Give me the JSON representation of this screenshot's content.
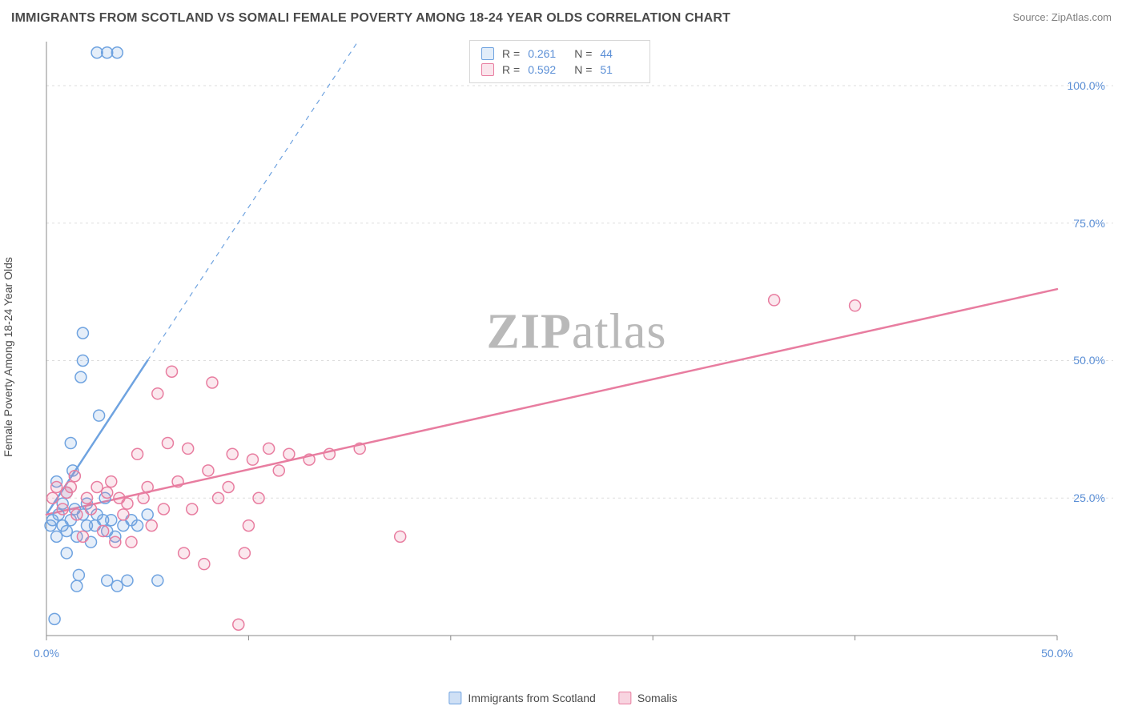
{
  "title": "IMMIGRANTS FROM SCOTLAND VS SOMALI FEMALE POVERTY AMONG 18-24 YEAR OLDS CORRELATION CHART",
  "source_label": "Source: ZipAtlas.com",
  "watermark": {
    "bold": "ZIP",
    "rest": "atlas"
  },
  "y_axis_label": "Female Poverty Among 18-24 Year Olds",
  "chart": {
    "type": "scatter",
    "background_color": "#ffffff",
    "grid_color": "#dddddd",
    "grid_dash": "3,4",
    "axis_line_color": "#888888",
    "xlim": [
      0,
      50
    ],
    "ylim": [
      0,
      108
    ],
    "x_ticks": [
      0,
      10,
      20,
      30,
      40,
      50
    ],
    "x_tick_labels": [
      "0.0%",
      "",
      "",
      "",
      "",
      "50.0%"
    ],
    "y_ticks": [
      25,
      50,
      75,
      100
    ],
    "y_tick_labels": [
      "25.0%",
      "50.0%",
      "75.0%",
      "100.0%"
    ],
    "axis_label_color": "#5b8fd6",
    "marker_radius": 7,
    "marker_stroke_width": 1.5,
    "marker_fill_opacity": 0.18,
    "trend_line_width_solid": 2.5,
    "trend_line_width_dashed": 1.2,
    "trend_dash": "6,6"
  },
  "series": [
    {
      "name": "Immigrants from Scotland",
      "color_stroke": "#6fa3e0",
      "color_fill": "#6fa3e0",
      "R": "0.261",
      "N": "44",
      "trend": {
        "x1": 0,
        "y1": 22,
        "x2_solid": 5,
        "y2_solid": 50,
        "x2_dashed": 15.4,
        "y2_dashed": 108
      },
      "points": [
        [
          0.2,
          20
        ],
        [
          0.3,
          21
        ],
        [
          0.5,
          18
        ],
        [
          0.5,
          28
        ],
        [
          0.6,
          22
        ],
        [
          0.8,
          24
        ],
        [
          0.8,
          20
        ],
        [
          1.0,
          19
        ],
        [
          1.0,
          26
        ],
        [
          1.2,
          21
        ],
        [
          1.2,
          35
        ],
        [
          1.3,
          30
        ],
        [
          1.4,
          23
        ],
        [
          1.5,
          18
        ],
        [
          1.5,
          9
        ],
        [
          1.6,
          11
        ],
        [
          1.7,
          47
        ],
        [
          1.8,
          50
        ],
        [
          1.8,
          55
        ],
        [
          1.8,
          22
        ],
        [
          2.0,
          20
        ],
        [
          2.0,
          24
        ],
        [
          2.2,
          17
        ],
        [
          2.4,
          20
        ],
        [
          2.5,
          22
        ],
        [
          2.6,
          40
        ],
        [
          2.8,
          21
        ],
        [
          2.9,
          25
        ],
        [
          3.0,
          10
        ],
        [
          3.0,
          19
        ],
        [
          3.2,
          21
        ],
        [
          3.4,
          18
        ],
        [
          3.5,
          9
        ],
        [
          3.8,
          20
        ],
        [
          4.0,
          10
        ],
        [
          4.2,
          21
        ],
        [
          4.5,
          20
        ],
        [
          5.0,
          22
        ],
        [
          5.5,
          10
        ],
        [
          0.4,
          3
        ],
        [
          1.0,
          15
        ],
        [
          2.5,
          106
        ],
        [
          3.0,
          106
        ],
        [
          3.5,
          106
        ]
      ]
    },
    {
      "name": "Somalis",
      "color_stroke": "#e87da0",
      "color_fill": "#e87da0",
      "R": "0.592",
      "N": "51",
      "trend": {
        "x1": 0,
        "y1": 22,
        "x2_solid": 50,
        "y2_solid": 63,
        "x2_dashed": 50,
        "y2_dashed": 63
      },
      "points": [
        [
          0.3,
          25
        ],
        [
          0.5,
          27
        ],
        [
          0.8,
          23
        ],
        [
          1.0,
          26
        ],
        [
          1.2,
          27
        ],
        [
          1.4,
          29
        ],
        [
          1.5,
          22
        ],
        [
          1.8,
          18
        ],
        [
          2.0,
          25
        ],
        [
          2.2,
          23
        ],
        [
          2.5,
          27
        ],
        [
          2.8,
          19
        ],
        [
          3.0,
          26
        ],
        [
          3.2,
          28
        ],
        [
          3.4,
          17
        ],
        [
          3.6,
          25
        ],
        [
          3.8,
          22
        ],
        [
          4.0,
          24
        ],
        [
          4.2,
          17
        ],
        [
          4.5,
          33
        ],
        [
          4.8,
          25
        ],
        [
          5.0,
          27
        ],
        [
          5.2,
          20
        ],
        [
          5.5,
          44
        ],
        [
          5.8,
          23
        ],
        [
          6.0,
          35
        ],
        [
          6.2,
          48
        ],
        [
          6.5,
          28
        ],
        [
          6.8,
          15
        ],
        [
          7.0,
          34
        ],
        [
          7.2,
          23
        ],
        [
          7.8,
          13
        ],
        [
          8.0,
          30
        ],
        [
          8.2,
          46
        ],
        [
          8.5,
          25
        ],
        [
          9.0,
          27
        ],
        [
          9.2,
          33
        ],
        [
          9.5,
          2
        ],
        [
          10.0,
          20
        ],
        [
          10.2,
          32
        ],
        [
          10.5,
          25
        ],
        [
          11.0,
          34
        ],
        [
          11.5,
          30
        ],
        [
          12.0,
          33
        ],
        [
          13.0,
          32
        ],
        [
          14.0,
          33
        ],
        [
          15.5,
          34
        ],
        [
          17.5,
          18
        ],
        [
          36.0,
          61
        ],
        [
          40.0,
          60
        ],
        [
          9.8,
          15
        ]
      ]
    }
  ],
  "bottom_legend": {
    "items": [
      {
        "label": "Immigrants from Scotland",
        "stroke": "#6fa3e0",
        "fill": "#cfe0f5"
      },
      {
        "label": "Somalis",
        "stroke": "#e87da0",
        "fill": "#f8d4e0"
      }
    ]
  }
}
